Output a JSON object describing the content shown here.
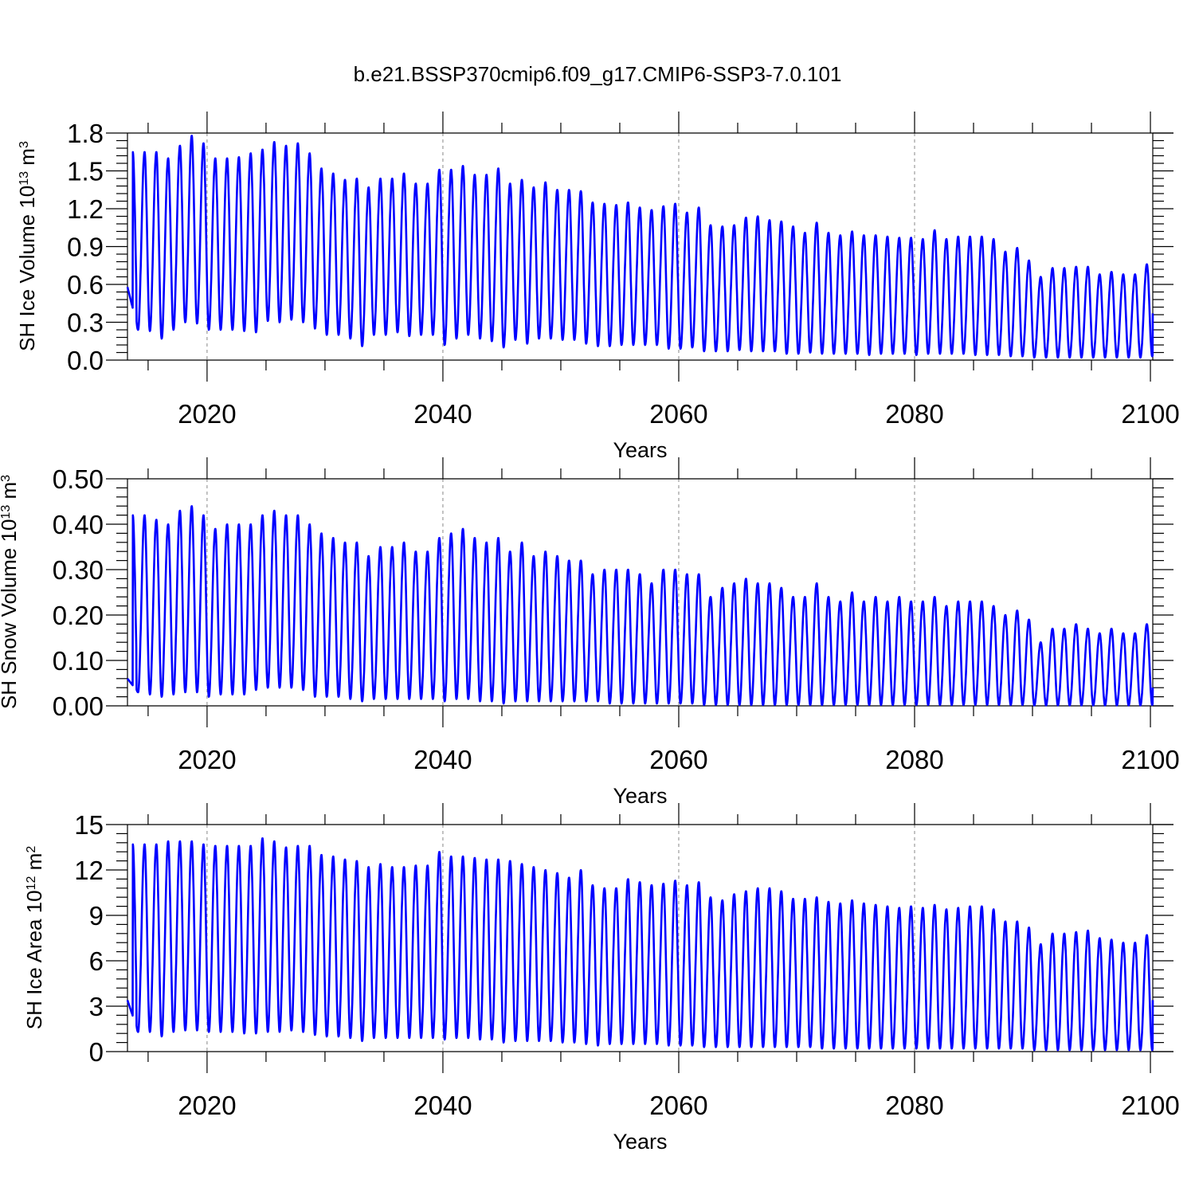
{
  "figure": {
    "title": "b.e21.BSSP370cmip6.f09_g17.CMIP6-SSP3-7.0.101",
    "line_color": "#0000ff"
  },
  "chart_data": [
    {
      "type": "line",
      "title": "b.e21.BSSP370cmip6.f09_g17.CMIP6-SSP3-7.0.101",
      "ylabel": "SH Ice Volume 10^13 m^3",
      "ylabel_base": "SH Ice Volume 10",
      "ylabel_exp": "13",
      "ylabel_unit": " m",
      "ylabel_unit_exp": "3",
      "xlabel": "Years",
      "xlim": [
        2013.25,
        2100.2
      ],
      "ylim": [
        0,
        1.8
      ],
      "xticks": [
        2020,
        2040,
        2060,
        2080,
        2100
      ],
      "xtick_labels": [
        "2020",
        "2040",
        "2060",
        "2080",
        "2100"
      ],
      "yticks": [
        0,
        0.3,
        0.6,
        0.9,
        1.2,
        1.5,
        1.8
      ],
      "ytick_labels": [
        "0.0",
        "0.3",
        "0.6",
        "0.9",
        "1.2",
        "1.5",
        "1.8"
      ],
      "grid": "vertical dashed at 2020, 2040, 2060, 2080",
      "series": [
        {
          "name": "SH Ice Volume",
          "start_year": 2014,
          "annual_max": [
            1.65,
            1.65,
            1.6,
            1.7,
            1.78,
            1.72,
            1.6,
            1.6,
            1.61,
            1.64,
            1.67,
            1.73,
            1.7,
            1.72,
            1.64,
            1.52,
            1.48,
            1.43,
            1.44,
            1.37,
            1.44,
            1.44,
            1.48,
            1.4,
            1.4,
            1.51,
            1.51,
            1.54,
            1.47,
            1.47,
            1.52,
            1.4,
            1.43,
            1.37,
            1.41,
            1.35,
            1.35,
            1.34,
            1.25,
            1.24,
            1.23,
            1.25,
            1.21,
            1.19,
            1.22,
            1.24,
            1.17,
            1.21,
            1.07,
            1.06,
            1.07,
            1.13,
            1.14,
            1.11,
            1.1,
            1.06,
            1.01,
            1.09,
            1.01,
            0.99,
            1.02,
            0.99,
            0.99,
            0.98,
            0.97,
            0.97,
            0.96,
            1.03,
            0.96,
            0.98,
            0.98,
            0.98,
            0.96,
            0.86,
            0.89,
            0.79,
            0.66,
            0.73,
            0.73,
            0.74,
            0.74,
            0.68,
            0.7,
            0.68,
            0.68,
            0.76,
            0.78
          ],
          "annual_min": [
            0.24,
            0.23,
            0.17,
            0.24,
            0.3,
            0.29,
            0.24,
            0.24,
            0.24,
            0.23,
            0.22,
            0.31,
            0.3,
            0.32,
            0.3,
            0.25,
            0.2,
            0.2,
            0.17,
            0.11,
            0.2,
            0.2,
            0.22,
            0.19,
            0.2,
            0.2,
            0.12,
            0.17,
            0.2,
            0.17,
            0.15,
            0.1,
            0.16,
            0.13,
            0.17,
            0.17,
            0.16,
            0.16,
            0.13,
            0.11,
            0.11,
            0.12,
            0.12,
            0.12,
            0.12,
            0.09,
            0.09,
            0.1,
            0.07,
            0.07,
            0.07,
            0.08,
            0.07,
            0.07,
            0.07,
            0.05,
            0.05,
            0.06,
            0.05,
            0.05,
            0.05,
            0.05,
            0.04,
            0.05,
            0.05,
            0.05,
            0.04,
            0.05,
            0.05,
            0.05,
            0.05,
            0.04,
            0.04,
            0.04,
            0.03,
            0.03,
            0.02,
            0.02,
            0.02,
            0.02,
            0.02,
            0.02,
            0.02,
            0.02,
            0.02,
            0.02,
            0.03
          ],
          "start_value": 0.58,
          "end_value": 0.37
        }
      ]
    },
    {
      "type": "line",
      "ylabel": "SH Snow Volume 10^13 m^3",
      "ylabel_base": "SH Snow Volume 10",
      "ylabel_exp": "13",
      "ylabel_unit": " m",
      "ylabel_unit_exp": "3",
      "xlabel": "Years",
      "xlim": [
        2013.25,
        2100.2
      ],
      "ylim": [
        0,
        0.5
      ],
      "xticks": [
        2020,
        2040,
        2060,
        2080,
        2100
      ],
      "xtick_labels": [
        "2020",
        "2040",
        "2060",
        "2080",
        "2100"
      ],
      "yticks": [
        0,
        0.1,
        0.2,
        0.3,
        0.4,
        0.5
      ],
      "ytick_labels": [
        "0.00",
        "0.10",
        "0.20",
        "0.30",
        "0.40",
        "0.50"
      ],
      "grid": "vertical dashed at 2020, 2040, 2060, 2080",
      "series": [
        {
          "name": "SH Snow Volume",
          "start_year": 2014,
          "annual_max": [
            0.42,
            0.41,
            0.4,
            0.43,
            0.44,
            0.42,
            0.39,
            0.4,
            0.4,
            0.4,
            0.42,
            0.43,
            0.42,
            0.42,
            0.4,
            0.38,
            0.37,
            0.36,
            0.36,
            0.33,
            0.35,
            0.35,
            0.36,
            0.34,
            0.34,
            0.37,
            0.38,
            0.39,
            0.37,
            0.36,
            0.37,
            0.34,
            0.36,
            0.33,
            0.34,
            0.33,
            0.32,
            0.32,
            0.29,
            0.3,
            0.3,
            0.3,
            0.29,
            0.27,
            0.3,
            0.3,
            0.29,
            0.29,
            0.24,
            0.26,
            0.27,
            0.28,
            0.27,
            0.27,
            0.26,
            0.24,
            0.24,
            0.27,
            0.24,
            0.23,
            0.25,
            0.23,
            0.24,
            0.23,
            0.24,
            0.23,
            0.23,
            0.24,
            0.22,
            0.23,
            0.23,
            0.23,
            0.22,
            0.2,
            0.21,
            0.19,
            0.14,
            0.17,
            0.17,
            0.18,
            0.17,
            0.16,
            0.17,
            0.16,
            0.16,
            0.18,
            0.18
          ],
          "annual_min": [
            0.03,
            0.025,
            0.02,
            0.025,
            0.03,
            0.03,
            0.02,
            0.025,
            0.025,
            0.025,
            0.035,
            0.04,
            0.04,
            0.04,
            0.035,
            0.02,
            0.02,
            0.02,
            0.015,
            0.01,
            0.015,
            0.015,
            0.015,
            0.015,
            0.015,
            0.015,
            0.01,
            0.015,
            0.015,
            0.01,
            0.01,
            0.005,
            0.01,
            0.01,
            0.01,
            0.01,
            0.01,
            0.01,
            0.01,
            0.01,
            0.005,
            0.005,
            0.005,
            0.005,
            0.005,
            0.005,
            0.005,
            0.005,
            0.002,
            0.002,
            0.002,
            0.002,
            0.002,
            0.002,
            0.002,
            0.002,
            0.002,
            0.002,
            0.002,
            0.002,
            0.002,
            0.002,
            0.002,
            0.002,
            0.002,
            0.002,
            0.002,
            0.002,
            0.002,
            0.002,
            0.002,
            0.002,
            0.002,
            0.002,
            0.002,
            0.002,
            0.001,
            0.001,
            0.001,
            0.001,
            0.001,
            0.001,
            0.001,
            0.001,
            0.001,
            0.001,
            0.002
          ],
          "start_value": 0.06,
          "end_value": 0.04
        }
      ]
    },
    {
      "type": "line",
      "ylabel": "SH Ice Area 10^12 m^2",
      "ylabel_base": "SH Ice Area 10",
      "ylabel_exp": "12",
      "ylabel_unit": " m",
      "ylabel_unit_exp": "2",
      "xlabel": "Years",
      "xlim": [
        2013.25,
        2100.2
      ],
      "ylim": [
        0,
        15
      ],
      "xticks": [
        2020,
        2040,
        2060,
        2080,
        2100
      ],
      "xtick_labels": [
        "2020",
        "2040",
        "2060",
        "2080",
        "2100"
      ],
      "yticks": [
        0,
        3,
        6,
        9,
        12,
        15
      ],
      "ytick_labels": [
        "0",
        "3",
        "6",
        "9",
        "12",
        "15"
      ],
      "grid": "vertical dashed at 2020, 2040, 2060, 2080",
      "series": [
        {
          "name": "SH Ice Area",
          "start_year": 2014,
          "annual_max": [
            13.7,
            13.7,
            13.9,
            13.9,
            13.9,
            13.7,
            13.6,
            13.6,
            13.6,
            13.6,
            14.1,
            13.9,
            13.5,
            13.6,
            13.6,
            13.0,
            12.9,
            12.7,
            12.6,
            12.2,
            12.4,
            12.2,
            12.2,
            12.3,
            12.3,
            13.2,
            12.9,
            12.9,
            12.8,
            12.7,
            12.7,
            12.6,
            12.4,
            12.2,
            12.0,
            11.8,
            11.5,
            12.0,
            11.0,
            10.8,
            10.8,
            11.4,
            11.2,
            11.0,
            11.1,
            11.3,
            11.0,
            11.2,
            10.2,
            10.0,
            10.4,
            10.6,
            10.8,
            10.8,
            10.6,
            10.1,
            10.1,
            10.2,
            9.9,
            9.8,
            10.0,
            9.8,
            9.7,
            9.6,
            9.5,
            9.6,
            9.5,
            9.7,
            9.4,
            9.5,
            9.6,
            9.6,
            9.4,
            8.6,
            8.6,
            8.2,
            7.1,
            7.8,
            7.8,
            7.9,
            8.0,
            7.5,
            7.4,
            7.2,
            7.2,
            7.7,
            8.3
          ],
          "annual_min": [
            1.3,
            1.3,
            1.0,
            1.3,
            1.4,
            1.4,
            1.3,
            1.3,
            1.3,
            1.2,
            1.2,
            1.3,
            1.3,
            1.4,
            1.3,
            1.1,
            1.0,
            1.0,
            0.9,
            0.7,
            0.9,
            0.9,
            0.9,
            0.9,
            0.9,
            0.9,
            0.8,
            0.9,
            0.9,
            0.8,
            0.8,
            0.6,
            0.7,
            0.7,
            0.7,
            0.7,
            0.6,
            0.6,
            0.5,
            0.4,
            0.5,
            0.5,
            0.5,
            0.5,
            0.5,
            0.4,
            0.4,
            0.4,
            0.3,
            0.3,
            0.3,
            0.3,
            0.3,
            0.3,
            0.3,
            0.3,
            0.3,
            0.3,
            0.2,
            0.2,
            0.2,
            0.2,
            0.2,
            0.2,
            0.2,
            0.2,
            0.2,
            0.2,
            0.2,
            0.2,
            0.2,
            0.2,
            0.2,
            0.2,
            0.2,
            0.2,
            0.1,
            0.1,
            0.1,
            0.1,
            0.1,
            0.1,
            0.1,
            0.1,
            0.1,
            0.1,
            0.1
          ],
          "start_value": 3.4,
          "end_value": 3.4
        }
      ]
    }
  ]
}
